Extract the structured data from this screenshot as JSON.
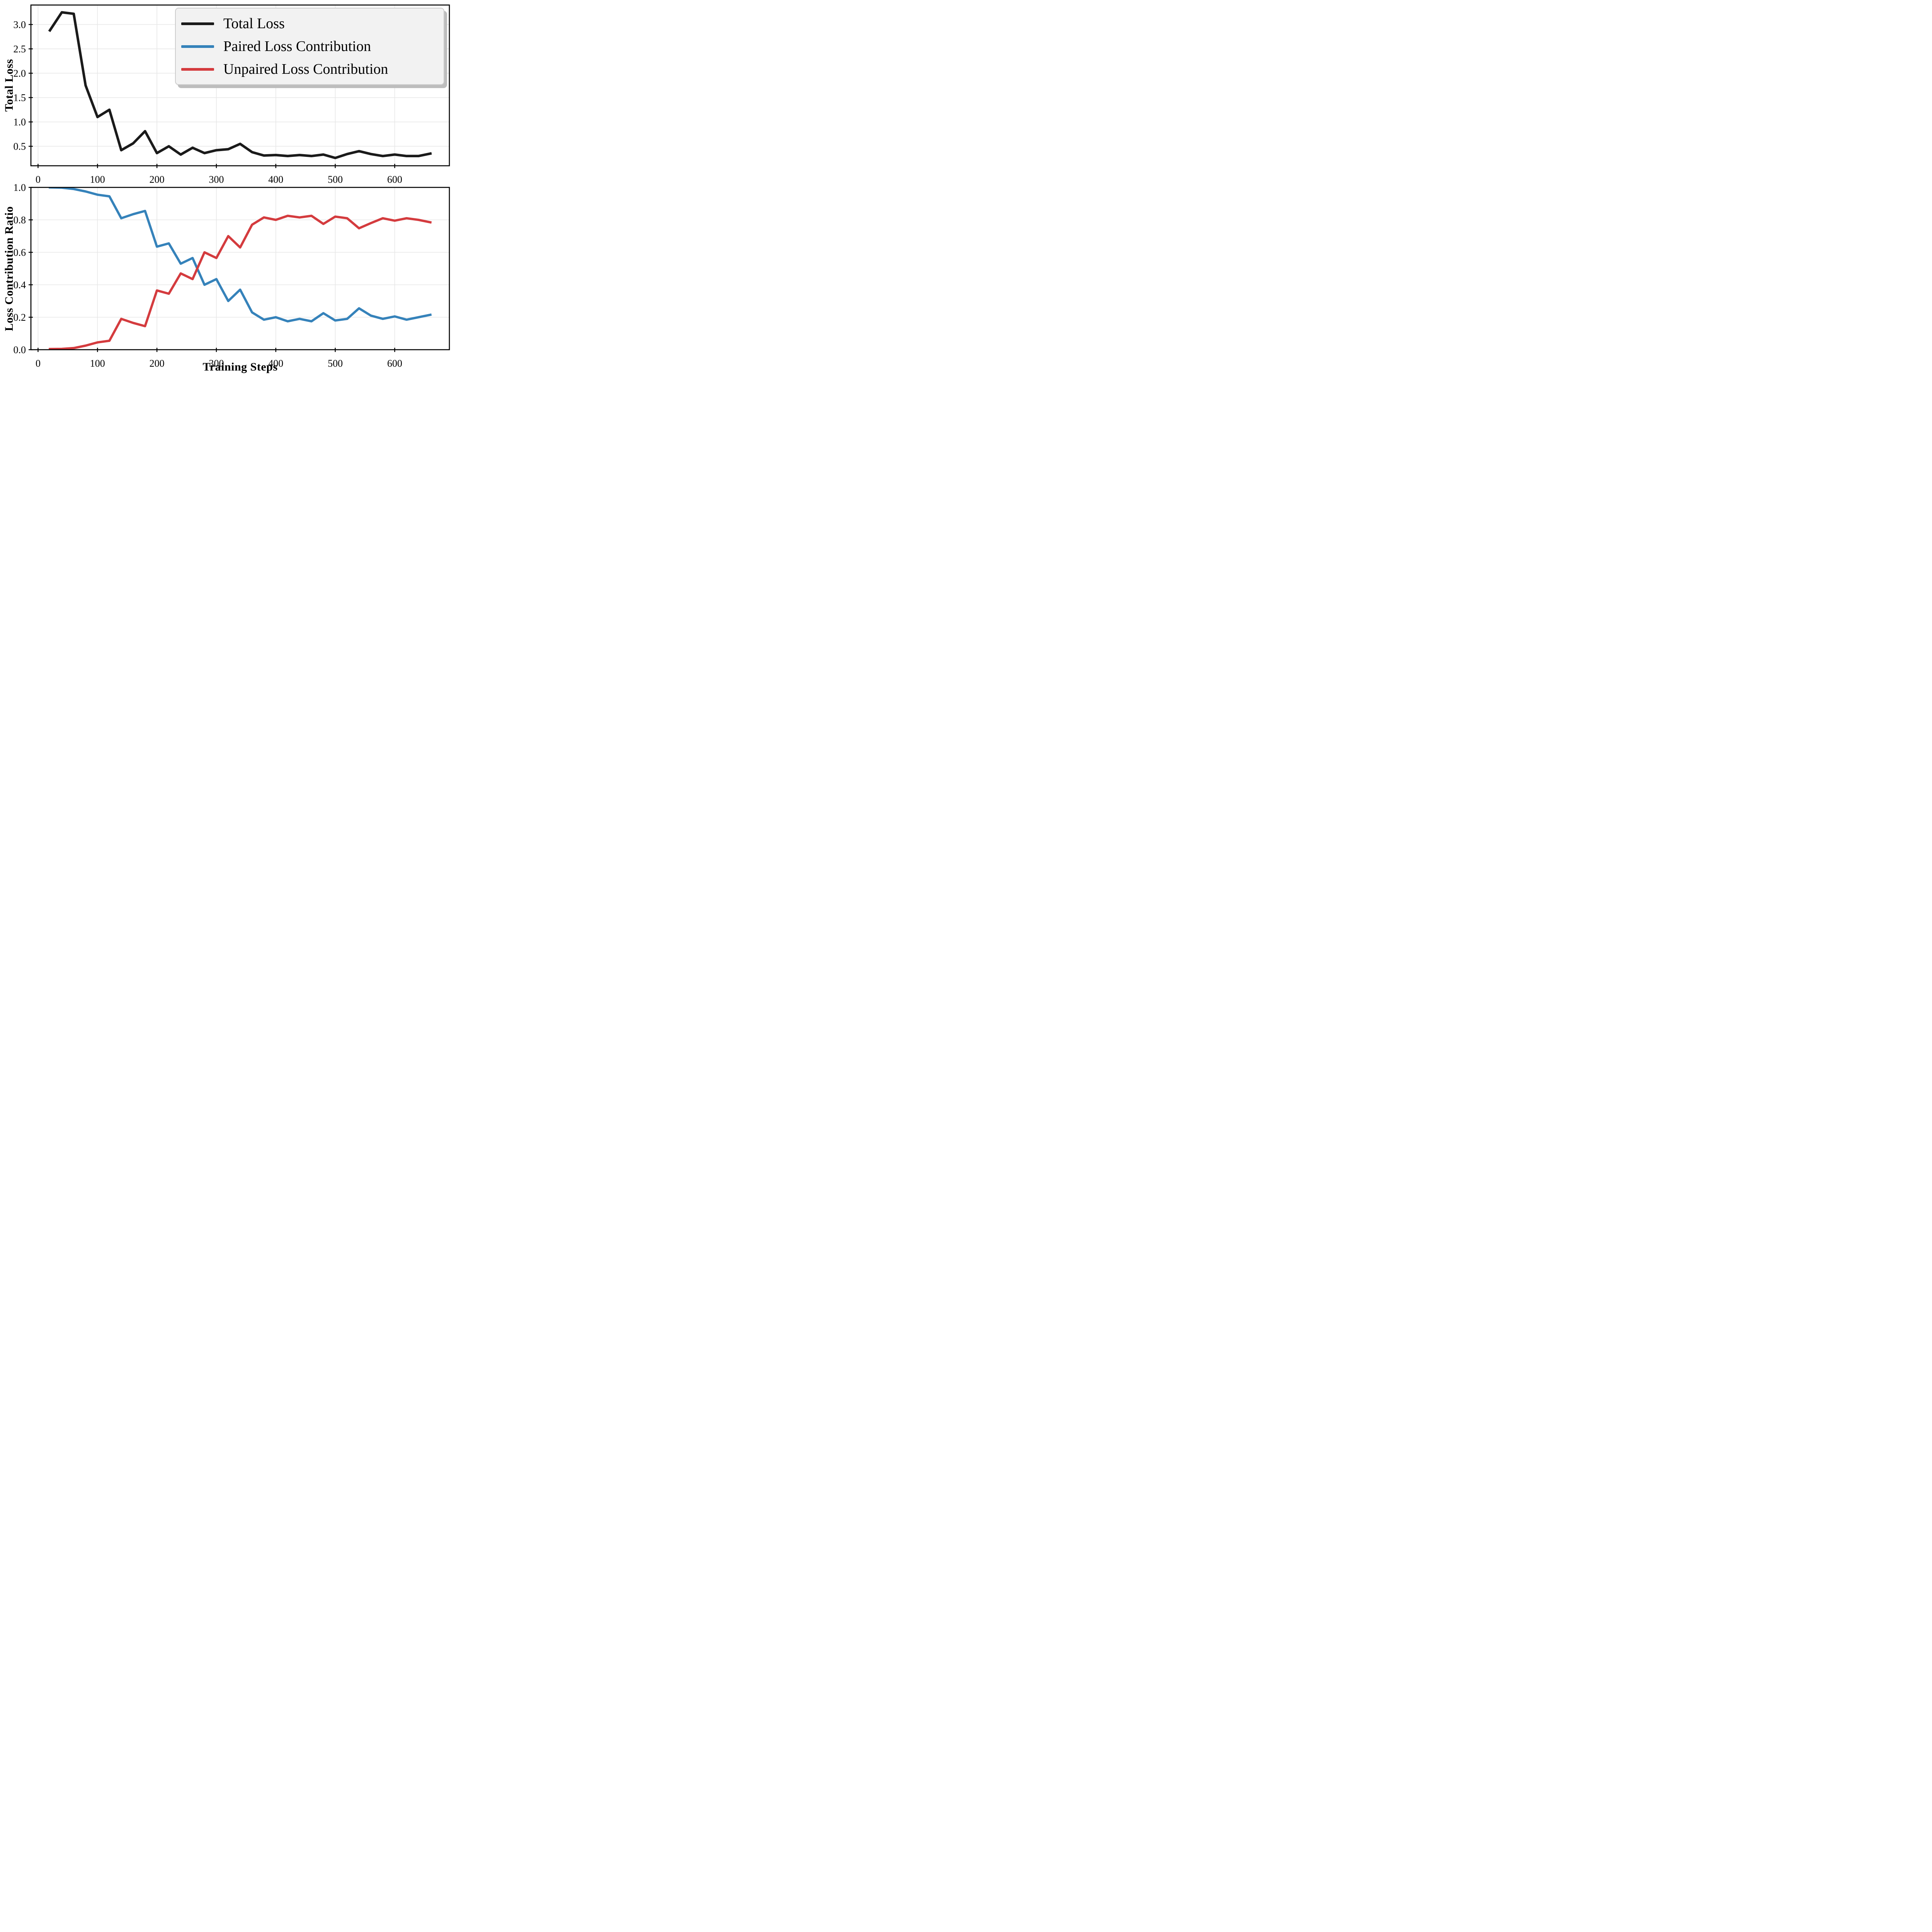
{
  "style": {
    "background_color": "#ffffff",
    "grid_color": "#e7e7e7",
    "spine_color": "#000000",
    "legend_background": "#f2f2f2",
    "legend_border": "#cccccc",
    "legend_shadow": "#bdbdbd",
    "total_loss_color": "#1a1a1a",
    "paired_color": "#3582ba",
    "unpaired_color": "#d43b3e"
  },
  "legend": {
    "position": "upper right",
    "items": [
      {
        "label": "Total Loss",
        "color": "#1a1a1a"
      },
      {
        "label": "Paired Loss Contribution",
        "color": "#3582ba"
      },
      {
        "label": "Unpaired Loss Contribution",
        "color": "#d43b3e"
      }
    ]
  },
  "chart_data": [
    {
      "type": "line",
      "title": "",
      "xlabel": "",
      "ylabel": "Total Loss",
      "grid": true,
      "legend_position": "upper right",
      "xlim": [
        -12,
        692
      ],
      "ylim": [
        0.1,
        3.4
      ],
      "xticks": [
        0,
        100,
        200,
        300,
        400,
        500,
        600
      ],
      "xtick_labels": [
        "0",
        "100",
        "200",
        "300",
        "400",
        "500",
        "600"
      ],
      "yticks": [
        0.5,
        1.0,
        1.5,
        2.0,
        2.5,
        3.0
      ],
      "ytick_labels": [
        "0.5",
        "1.0",
        "1.5",
        "2.0",
        "2.5",
        "3.0"
      ],
      "x": [
        20,
        40,
        60,
        80,
        100,
        120,
        140,
        160,
        180,
        200,
        220,
        240,
        260,
        280,
        300,
        320,
        340,
        360,
        380,
        400,
        420,
        440,
        460,
        480,
        500,
        520,
        540,
        560,
        580,
        600,
        620,
        640,
        660
      ],
      "series": [
        {
          "name": "Total Loss",
          "color": "#1a1a1a",
          "linewidth": 6.5,
          "values": [
            2.88,
            3.25,
            3.22,
            1.75,
            1.1,
            1.25,
            0.42,
            0.56,
            0.81,
            0.36,
            0.5,
            0.33,
            0.47,
            0.36,
            0.42,
            0.44,
            0.55,
            0.38,
            0.31,
            0.32,
            0.3,
            0.32,
            0.3,
            0.33,
            0.26,
            0.34,
            0.4,
            0.34,
            0.3,
            0.33,
            0.3,
            0.3,
            0.35
          ]
        }
      ]
    },
    {
      "type": "line",
      "title": "",
      "xlabel": "Training Steps",
      "ylabel": "Loss Contribution Ratio",
      "grid": true,
      "legend_position": "none",
      "xlim": [
        -12,
        692
      ],
      "ylim": [
        0.0,
        1.0
      ],
      "xticks": [
        0,
        100,
        200,
        300,
        400,
        500,
        600
      ],
      "xtick_labels": [
        "0",
        "100",
        "200",
        "300",
        "400",
        "500",
        "600"
      ],
      "yticks": [
        0.0,
        0.2,
        0.4,
        0.6,
        0.8,
        1.0
      ],
      "ytick_labels": [
        "0.0",
        "0.2",
        "0.4",
        "0.6",
        "0.8",
        "1.0"
      ],
      "x": [
        20,
        40,
        60,
        80,
        100,
        120,
        140,
        160,
        180,
        200,
        220,
        240,
        260,
        280,
        300,
        320,
        340,
        360,
        380,
        400,
        420,
        440,
        460,
        480,
        500,
        520,
        540,
        560,
        580,
        600,
        620,
        640,
        660
      ],
      "series": [
        {
          "name": "Paired Loss Contribution",
          "color": "#3582ba",
          "linewidth": 6,
          "values": [
            1.0,
            0.998,
            0.99,
            0.975,
            0.955,
            0.945,
            0.81,
            0.835,
            0.855,
            0.635,
            0.655,
            0.53,
            0.565,
            0.4,
            0.435,
            0.3,
            0.37,
            0.23,
            0.185,
            0.2,
            0.175,
            0.19,
            0.175,
            0.225,
            0.18,
            0.19,
            0.255,
            0.21,
            0.19,
            0.205,
            0.185,
            0.2,
            0.215
          ]
        },
        {
          "name": "Unpaired Loss Contribution",
          "color": "#d43b3e",
          "linewidth": 6,
          "values": [
            0.004,
            0.005,
            0.01,
            0.025,
            0.045,
            0.055,
            0.19,
            0.165,
            0.145,
            0.365,
            0.345,
            0.47,
            0.435,
            0.6,
            0.565,
            0.7,
            0.63,
            0.77,
            0.815,
            0.8,
            0.825,
            0.815,
            0.825,
            0.775,
            0.82,
            0.81,
            0.748,
            0.78,
            0.81,
            0.795,
            0.81,
            0.8,
            0.785
          ]
        }
      ]
    }
  ]
}
